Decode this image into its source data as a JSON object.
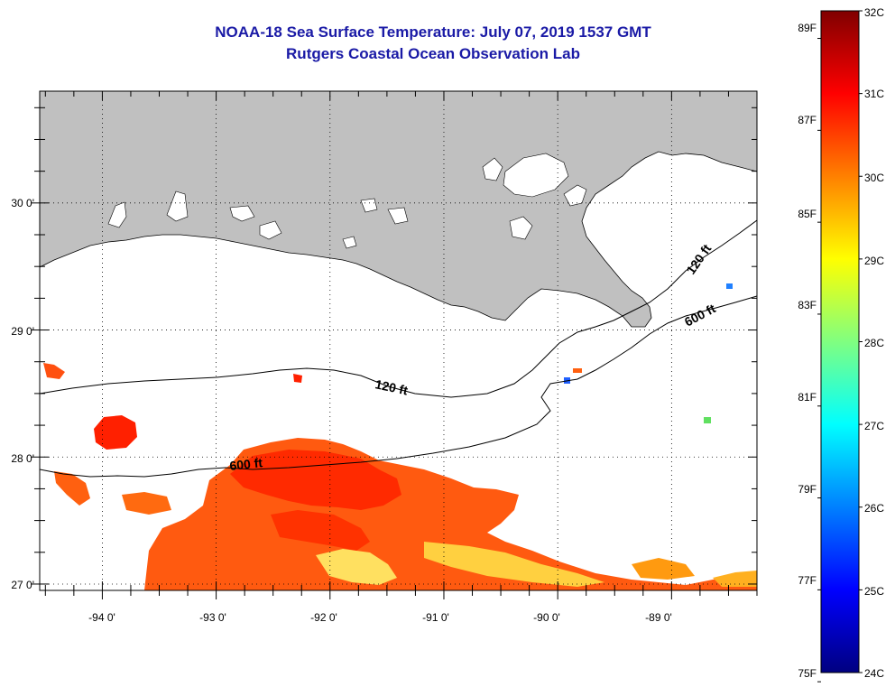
{
  "title": "NOAA-18 Sea Surface Temperature:  July 07, 2019 1537 GMT",
  "subtitle": "Rutgers Coastal Ocean Observation Lab",
  "map": {
    "lon_range": [
      -94.55,
      -88.25
    ],
    "lat_range": [
      26.95,
      30.88
    ],
    "lon_ticks": [
      {
        "value": -94,
        "label": "-94 0'"
      },
      {
        "value": -93,
        "label": "-93 0'"
      },
      {
        "value": -92,
        "label": "-92 0'"
      },
      {
        "value": -91,
        "label": "-91 0'"
      },
      {
        "value": -90,
        "label": "-90 0'"
      },
      {
        "value": -89,
        "label": "-89 0'"
      }
    ],
    "lat_ticks": [
      {
        "value": 30,
        "label": "30 0'"
      },
      {
        "value": 29,
        "label": "29 0'"
      },
      {
        "value": 28,
        "label": "28 0'"
      },
      {
        "value": 27,
        "label": "27 0'"
      }
    ],
    "land_color": "#c0c0c0",
    "contours": [
      {
        "label": "120 ft",
        "position": "center"
      },
      {
        "label": "600 ft",
        "position": "left"
      },
      {
        "label": "120 ft",
        "position": "right"
      },
      {
        "label": "600 ft",
        "position": "right"
      }
    ]
  },
  "colorbar": {
    "celsius": [
      "32C",
      "31C",
      "30C",
      "29C",
      "28C",
      "27C",
      "26C",
      "25C",
      "24C"
    ],
    "fahrenheit": [
      "89F",
      "87F",
      "85F",
      "83F",
      "81F",
      "79F",
      "77F",
      "75F"
    ],
    "range_c": [
      24,
      32
    ],
    "colors": [
      "#000080",
      "#0000ff",
      "#0080ff",
      "#00ffff",
      "#80ff80",
      "#ffff00",
      "#ff8000",
      "#ff0000",
      "#800000"
    ]
  }
}
